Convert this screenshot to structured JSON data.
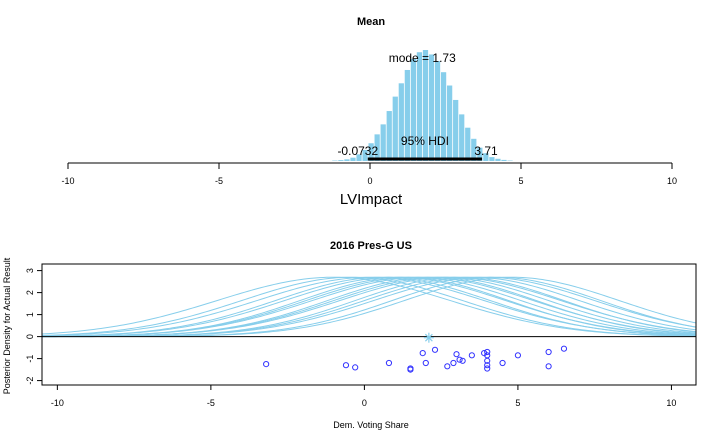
{
  "chart_data": [
    {
      "type": "bar",
      "title": "Mean",
      "xlabel": "LVImpact",
      "xlim": [
        -10,
        10
      ],
      "xticks": [
        "-10",
        "-5",
        "0",
        "5",
        "10"
      ],
      "bar_color": "#87CEEB",
      "mode_label": "mode = 1.73",
      "hdi_label": "95% HDI",
      "hdi_low_label": "-0.0732",
      "hdi_high_label": "3.71",
      "hdi": [
        -0.0732,
        3.71
      ],
      "bin_centers": [
        -1.15,
        -0.95,
        -0.75,
        -0.55,
        -0.35,
        -0.15,
        0.05,
        0.25,
        0.45,
        0.65,
        0.85,
        1.05,
        1.25,
        1.45,
        1.65,
        1.85,
        2.05,
        2.25,
        2.45,
        2.65,
        2.85,
        3.05,
        3.25,
        3.45,
        3.65,
        3.85,
        4.05,
        4.25,
        4.45,
        4.65
      ],
      "values": [
        0.004,
        0.008,
        0.015,
        0.03,
        0.06,
        0.1,
        0.16,
        0.24,
        0.33,
        0.45,
        0.58,
        0.7,
        0.82,
        0.92,
        0.98,
        1.0,
        0.96,
        0.9,
        0.8,
        0.68,
        0.55,
        0.42,
        0.3,
        0.2,
        0.12,
        0.07,
        0.035,
        0.02,
        0.01,
        0.004
      ]
    },
    {
      "type": "line",
      "title": "2016 Pres-G US",
      "xlabel": "Dem. Voting Share",
      "ylabel": "Posterior Density for Actual Result",
      "xlim": [
        -10.5,
        10.8
      ],
      "ylim": [
        -2.2,
        3.3
      ],
      "xticks": [
        "-10",
        "-5",
        "0",
        "5",
        "10"
      ],
      "yticks": [
        "-2",
        "-1",
        "0",
        "1",
        "2",
        "3"
      ],
      "line_color": "#87CEEB",
      "point_color": "#3333FF",
      "actual_marker": {
        "x": 2.1,
        "y": -0.05
      },
      "curves": [
        {
          "mu": -1.0,
          "sigma": 3.8
        },
        {
          "mu": -0.4,
          "sigma": 3.6
        },
        {
          "mu": 0.2,
          "sigma": 3.7
        },
        {
          "mu": 0.6,
          "sigma": 3.5
        },
        {
          "mu": 1.0,
          "sigma": 3.6
        },
        {
          "mu": 1.3,
          "sigma": 3.4
        },
        {
          "mu": 1.6,
          "sigma": 3.5
        },
        {
          "mu": 1.9,
          "sigma": 3.6
        },
        {
          "mu": 2.2,
          "sigma": 3.4
        },
        {
          "mu": 2.5,
          "sigma": 3.5
        },
        {
          "mu": 2.8,
          "sigma": 3.6
        },
        {
          "mu": 3.1,
          "sigma": 3.4
        },
        {
          "mu": 3.5,
          "sigma": 3.5
        },
        {
          "mu": 3.9,
          "sigma": 3.6
        },
        {
          "mu": 4.3,
          "sigma": 3.4
        },
        {
          "mu": 4.8,
          "sigma": 3.5
        }
      ],
      "points": [
        {
          "x": -3.2,
          "y": -1.25
        },
        {
          "x": -0.6,
          "y": -1.3
        },
        {
          "x": -0.3,
          "y": -1.4
        },
        {
          "x": 0.8,
          "y": -1.2
        },
        {
          "x": 1.5,
          "y": -1.45
        },
        {
          "x": 1.5,
          "y": -1.5
        },
        {
          "x": 1.9,
          "y": -0.75
        },
        {
          "x": 2.0,
          "y": -1.2
        },
        {
          "x": 2.3,
          "y": -0.6
        },
        {
          "x": 2.7,
          "y": -1.35
        },
        {
          "x": 2.9,
          "y": -1.2
        },
        {
          "x": 3.0,
          "y": -0.8
        },
        {
          "x": 3.1,
          "y": -1.05
        },
        {
          "x": 3.2,
          "y": -1.1
        },
        {
          "x": 3.5,
          "y": -0.85
        },
        {
          "x": 3.9,
          "y": -0.75
        },
        {
          "x": 4.0,
          "y": -0.7
        },
        {
          "x": 4.0,
          "y": -0.85
        },
        {
          "x": 4.0,
          "y": -1.1
        },
        {
          "x": 4.0,
          "y": -1.3
        },
        {
          "x": 4.0,
          "y": -1.45
        },
        {
          "x": 4.5,
          "y": -1.2
        },
        {
          "x": 5.0,
          "y": -0.85
        },
        {
          "x": 6.0,
          "y": -0.7
        },
        {
          "x": 6.0,
          "y": -1.35
        },
        {
          "x": 6.5,
          "y": -0.55
        }
      ]
    }
  ]
}
